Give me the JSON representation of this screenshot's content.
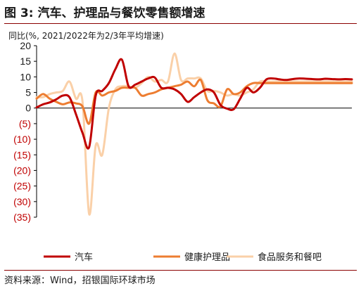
{
  "header": {
    "title": "图 3: 汽车、护理品与餐饮零售额增速",
    "unit_label": "同比(%, 2021/2022年为2/3年平均增速)"
  },
  "footer": {
    "source": "资料来源：Wind，招银国际环球市场"
  },
  "colors": {
    "negative_tick": "#c00000",
    "positive_tick": "#1a1a1a",
    "accent_rule": "#8b0000"
  },
  "chart_data": {
    "type": "line",
    "title": "",
    "xlabel": "",
    "ylabel": "同比(%, 2021/2022年为2/3年平均增速)",
    "ylim": [
      -35,
      20
    ],
    "yticks": [
      20,
      15,
      10,
      5,
      0,
      -5,
      -10,
      -15,
      -20,
      -25,
      -30,
      -35
    ],
    "ytick_labels": [
      "20",
      "15",
      "10",
      "5",
      "0",
      "(5)",
      "(10)",
      "(15)",
      "(20)",
      "(25)",
      "(30)",
      "(35)"
    ],
    "grid": false,
    "legend_position": "bottom",
    "x": [
      0,
      1,
      2,
      3,
      4,
      5,
      6,
      7,
      8,
      9,
      10,
      11,
      12,
      13,
      14,
      15,
      16,
      17,
      18,
      19,
      20,
      21,
      22,
      23,
      24,
      25,
      26,
      27,
      28,
      29,
      30,
      31,
      32,
      33,
      34,
      35,
      36,
      37,
      38,
      39,
      40,
      41,
      42,
      43,
      44,
      45,
      46,
      47,
      48
    ],
    "series": [
      {
        "name": "汽车",
        "color": "#c00000",
        "width": 3,
        "values": [
          0.2,
          1.2,
          1.8,
          2.8,
          4,
          3.5,
          -2,
          -8,
          -12.5,
          4,
          5.5,
          8,
          12.5,
          15.5,
          7,
          7.5,
          8.5,
          9.5,
          9.8,
          6.5,
          6.5,
          6,
          4.5,
          2,
          3.5,
          5,
          6,
          5,
          1,
          -0.2,
          -0.4,
          3,
          6.5,
          5,
          6.5,
          9.2,
          9.5,
          9.2,
          9.0,
          9.3,
          9.5,
          9.4,
          9.3,
          9.2,
          9.4,
          9.3,
          9.2,
          9.3,
          9.2
        ]
      },
      {
        "name": "健康护理品",
        "color": "#ed7d31",
        "width": 3,
        "values": [
          3,
          4.5,
          3,
          2,
          1.2,
          1.8,
          1.5,
          0.5,
          -5,
          5,
          4,
          5,
          5.5,
          6.5,
          6.5,
          6.5,
          4,
          4.5,
          5,
          6,
          6.5,
          7,
          7.5,
          8.5,
          7,
          9,
          2.5,
          1.5,
          0.5,
          6,
          4.5,
          5,
          7,
          8,
          8,
          8,
          8,
          8,
          8,
          8,
          8,
          8,
          8,
          8,
          8,
          8,
          8,
          8,
          8
        ]
      },
      {
        "name": "食品服务和餐吧",
        "color": "#fad0a8",
        "width": 3,
        "values": [
          3.5,
          3.5,
          4.5,
          5,
          5.5,
          8.5,
          3,
          2,
          -34,
          -12,
          -15,
          0,
          6,
          7,
          7,
          6.5,
          8,
          10,
          8.5,
          9,
          8.5,
          17.5,
          9,
          9.5,
          9.5,
          9.5,
          5.5,
          5.5,
          5,
          4,
          4.5,
          4,
          5,
          6,
          8.5,
          8.5,
          8.5,
          8.5,
          8.5,
          8.5,
          8.5,
          8.5,
          8.5,
          8.5,
          8.5,
          8.5,
          8.5,
          8.5,
          8.5
        ]
      }
    ]
  }
}
